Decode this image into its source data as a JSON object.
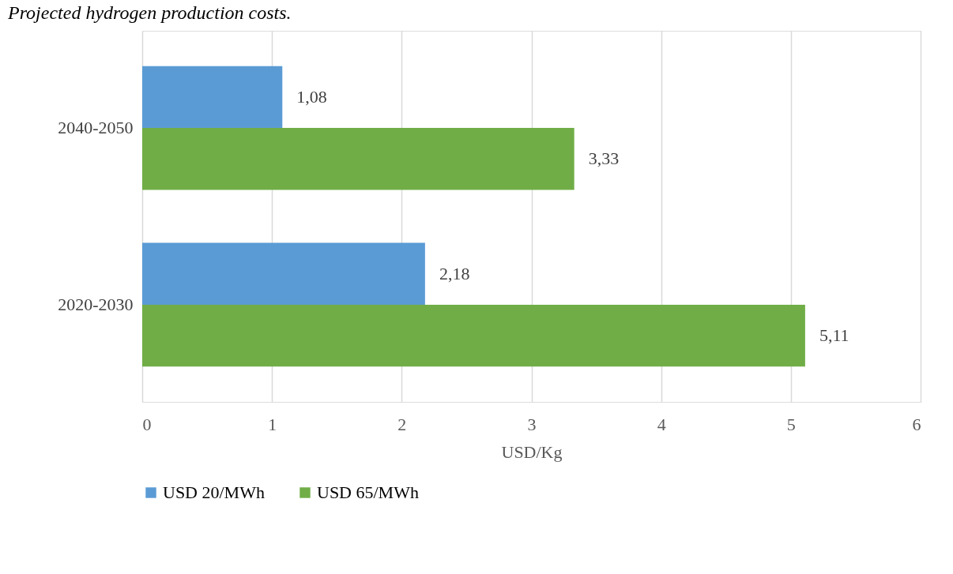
{
  "chart_data": {
    "type": "bar",
    "orientation": "horizontal",
    "title": "Projected hydrogen production costs.",
    "xlabel": "USD/Kg",
    "categories": [
      "2040-2050",
      "2020-2030"
    ],
    "series": [
      {
        "name": "USD 20/MWh",
        "color": "#5b9bd5",
        "values": [
          1.08,
          2.18
        ],
        "value_labels": [
          "1,08",
          "2,18"
        ]
      },
      {
        "name": "USD 65/MWh",
        "color": "#70ad47",
        "values": [
          3.33,
          5.11
        ],
        "value_labels": [
          "3,33",
          "5,11"
        ]
      }
    ],
    "xlim": [
      0,
      6
    ],
    "xticks": [
      0,
      1,
      2,
      3,
      4,
      5,
      6
    ],
    "grid": "x",
    "legend": "bottom"
  }
}
